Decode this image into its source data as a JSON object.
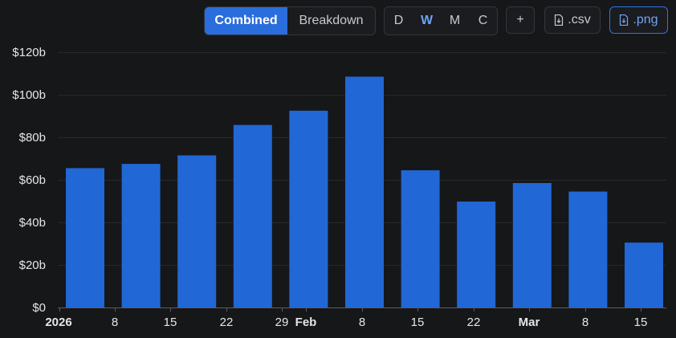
{
  "toolbar": {
    "view_modes": [
      "Combined",
      "Breakdown"
    ],
    "active_view": "Combined",
    "periods": [
      "D",
      "W",
      "M",
      "C"
    ],
    "active_period": "W",
    "add_label": "+",
    "csv_label": ".csv",
    "png_label": ".png"
  },
  "colors": {
    "bar": "#2167d6",
    "background": "#161719",
    "accent": "#2f74e6"
  },
  "chart_data": {
    "type": "bar",
    "title": "",
    "xlabel": "",
    "ylabel": "",
    "categories": [
      "2026-01-05",
      "2026-01-12",
      "2026-01-19",
      "2026-01-26",
      "2026-02-02",
      "2026-02-09",
      "2026-02-16",
      "2026-02-23",
      "2026-03-02",
      "2026-03-09",
      "2026-03-16"
    ],
    "values": [
      65.5,
      67.5,
      71.5,
      85.8,
      92.5,
      108.5,
      64.5,
      49.8,
      58.5,
      54.5,
      30.5
    ],
    "ylim": [
      0,
      120
    ],
    "yticks": [
      "$0",
      "$20b",
      "$40b",
      "$60b",
      "$80b",
      "$100b",
      "$120b"
    ],
    "xticks": [
      {
        "label": "2026",
        "bold": true
      },
      {
        "label": "8",
        "bold": false
      },
      {
        "label": "15",
        "bold": false
      },
      {
        "label": "22",
        "bold": false
      },
      {
        "label": "29",
        "bold": false
      },
      {
        "label": "Feb",
        "bold": true
      },
      {
        "label": "8",
        "bold": false
      },
      {
        "label": "15",
        "bold": false
      },
      {
        "label": "22",
        "bold": false
      },
      {
        "label": "Mar",
        "bold": true
      },
      {
        "label": "8",
        "bold": false
      },
      {
        "label": "15",
        "bold": false
      }
    ],
    "grid": true
  }
}
